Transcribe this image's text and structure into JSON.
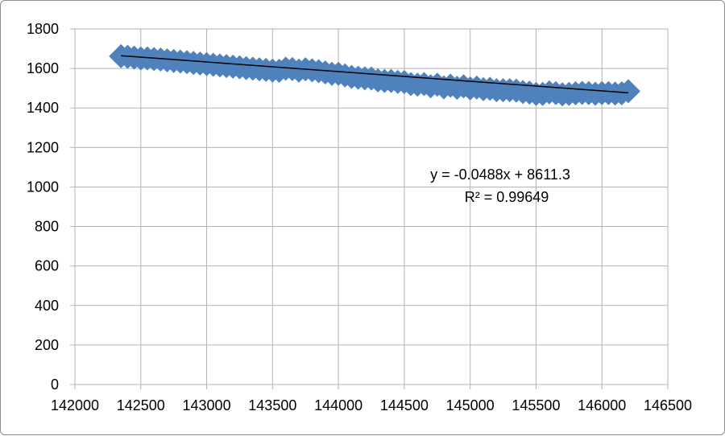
{
  "chart_data": {
    "type": "scatter",
    "title": "",
    "xlabel": "",
    "ylabel": "",
    "xlim": [
      142000,
      146500
    ],
    "ylim": [
      0,
      1800
    ],
    "x_ticks": [
      142000,
      142500,
      143000,
      143500,
      144000,
      144500,
      145000,
      145500,
      146000,
      146500
    ],
    "y_ticks": [
      0,
      200,
      400,
      600,
      800,
      1000,
      1200,
      1400,
      1600,
      1800
    ],
    "grid": true,
    "legend": "none",
    "marker": "diamond",
    "colors": {
      "points": "#4f81bd",
      "trendline": "#000000",
      "gridline": "#b3b3b3"
    },
    "series": [
      {
        "x": [
          142350,
          142400,
          142450,
          142500,
          142550,
          142600,
          142650,
          142700,
          142750,
          142800,
          142850,
          142900,
          142950,
          143000,
          143050,
          143100,
          143150,
          143200,
          143250,
          143300,
          143350,
          143400,
          143450,
          143500,
          143550,
          143600,
          143650,
          143700,
          143750,
          143800,
          143850,
          143900,
          143950,
          144000,
          144050,
          144100,
          144150,
          144200,
          144250,
          144300,
          144350,
          144400,
          144450,
          144500,
          144550,
          144600,
          144650,
          144700,
          144750,
          144800,
          144850,
          144900,
          144950,
          145000,
          145050,
          145100,
          145150,
          145200,
          145250,
          145300,
          145350,
          145400,
          145450,
          145500,
          145550,
          145600,
          145650,
          145700,
          145750,
          145800,
          145850,
          145900,
          145950,
          146000,
          146050,
          146100,
          146150,
          146200
        ],
        "y": [
          1662,
          1659,
          1655,
          1651,
          1651,
          1648,
          1645,
          1641,
          1638,
          1635,
          1632,
          1628,
          1625,
          1622,
          1619,
          1615,
          1612,
          1609,
          1606,
          1602,
          1599,
          1596,
          1593,
          1589,
          1588,
          1599,
          1597,
          1589,
          1596,
          1591,
          1586,
          1580,
          1573,
          1573,
          1565,
          1557,
          1553,
          1550,
          1549,
          1540,
          1537,
          1537,
          1532,
          1531,
          1521,
          1518,
          1521,
          1510,
          1518,
          1504,
          1513,
          1502,
          1510,
          1499,
          1503,
          1495,
          1497,
          1490,
          1490,
          1490,
          1488,
          1481,
          1478,
          1471,
          1471,
          1479,
          1475,
          1469,
          1471,
          1474,
          1476,
          1475,
          1472,
          1475,
          1475,
          1473,
          1474,
          1485
        ]
      }
    ],
    "trendline": {
      "slope": -0.0488,
      "intercept": 8611.3,
      "x_range": [
        142350,
        146200
      ],
      "equation": "y = -0.0488x + 8611.3",
      "r_squared": "R² = 0.99649"
    }
  }
}
